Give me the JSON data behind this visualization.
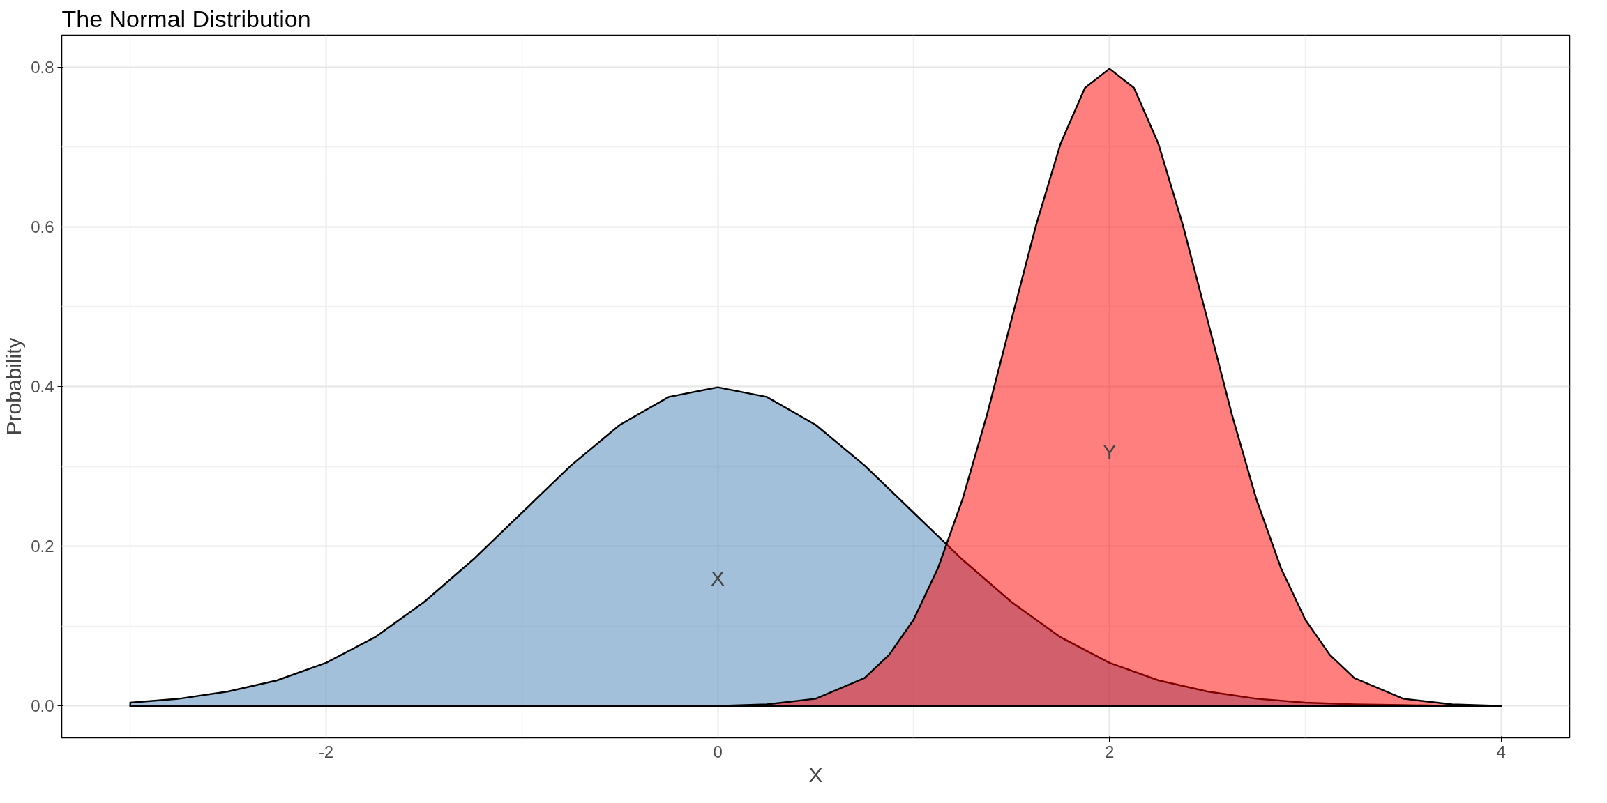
{
  "chart_data": {
    "type": "area",
    "title": "The Normal Distribution",
    "xlabel": "X",
    "ylabel": "Probability",
    "xlim": [
      -3.35,
      4.35
    ],
    "ylim": [
      -0.04,
      0.84
    ],
    "xticks": [
      -2,
      0,
      2,
      4
    ],
    "yticks": [
      {
        "value": 0,
        "label": "0.0"
      },
      {
        "value": 0.2,
        "label": "0.2"
      },
      {
        "value": 0.4,
        "label": "0.4"
      },
      {
        "value": 0.6,
        "label": "0.6"
      },
      {
        "value": 0.8,
        "label": "0.8"
      }
    ],
    "grid": true,
    "series": [
      {
        "name": "X",
        "color": "#4682b4",
        "x": [
          -3,
          -2.75,
          -2.5,
          -2.25,
          -2,
          -1.75,
          -1.5,
          -1.25,
          -1,
          -0.75,
          -0.5,
          -0.25,
          0,
          0.25,
          0.5,
          0.75,
          1,
          1.25,
          1.5,
          1.75,
          2,
          2.25,
          2.5,
          2.75,
          3,
          3.25,
          3.5,
          3.75,
          4
        ],
        "values": [
          0.004,
          0.009,
          0.018,
          0.032,
          0.054,
          0.086,
          0.13,
          0.183,
          0.242,
          0.301,
          0.352,
          0.387,
          0.399,
          0.387,
          0.352,
          0.301,
          0.242,
          0.183,
          0.13,
          0.086,
          0.054,
          0.032,
          0.018,
          0.009,
          0.004,
          0.002,
          0.001,
          0.0,
          0.0
        ]
      },
      {
        "name": "Y",
        "color": "#ff0000",
        "x": [
          -3,
          -2,
          -1,
          0,
          0.25,
          0.5,
          0.75,
          0.875,
          1,
          1.125,
          1.25,
          1.375,
          1.5,
          1.625,
          1.75,
          1.875,
          2,
          2.125,
          2.25,
          2.375,
          2.5,
          2.625,
          2.75,
          2.875,
          3,
          3.125,
          3.25,
          3.5,
          3.75,
          4
        ],
        "values": [
          0.0,
          0.0,
          0.0,
          0.0,
          0.002,
          0.009,
          0.035,
          0.064,
          0.108,
          0.173,
          0.259,
          0.365,
          0.484,
          0.602,
          0.704,
          0.774,
          0.798,
          0.774,
          0.704,
          0.602,
          0.484,
          0.365,
          0.259,
          0.173,
          0.108,
          0.064,
          0.035,
          0.009,
          0.002,
          0.0
        ]
      }
    ]
  }
}
